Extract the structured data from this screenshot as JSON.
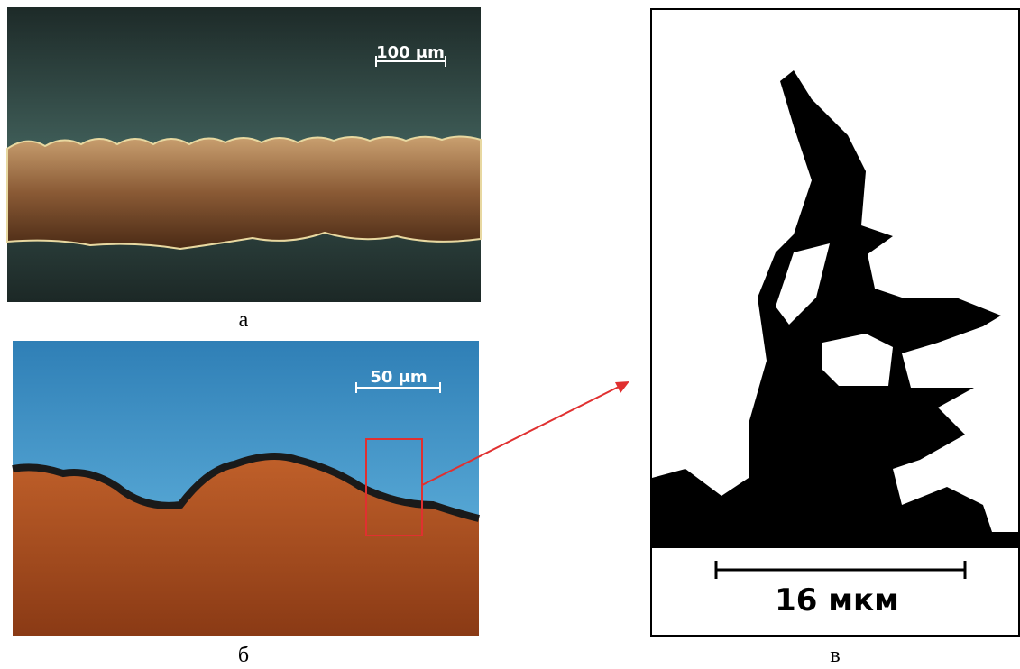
{
  "panels": [
    {
      "scale_label": "100 μm",
      "caption": "а"
    },
    {
      "scale_label": "50 μm",
      "caption": "б"
    },
    {
      "scale_label": "16 мкм",
      "caption": "в"
    }
  ]
}
